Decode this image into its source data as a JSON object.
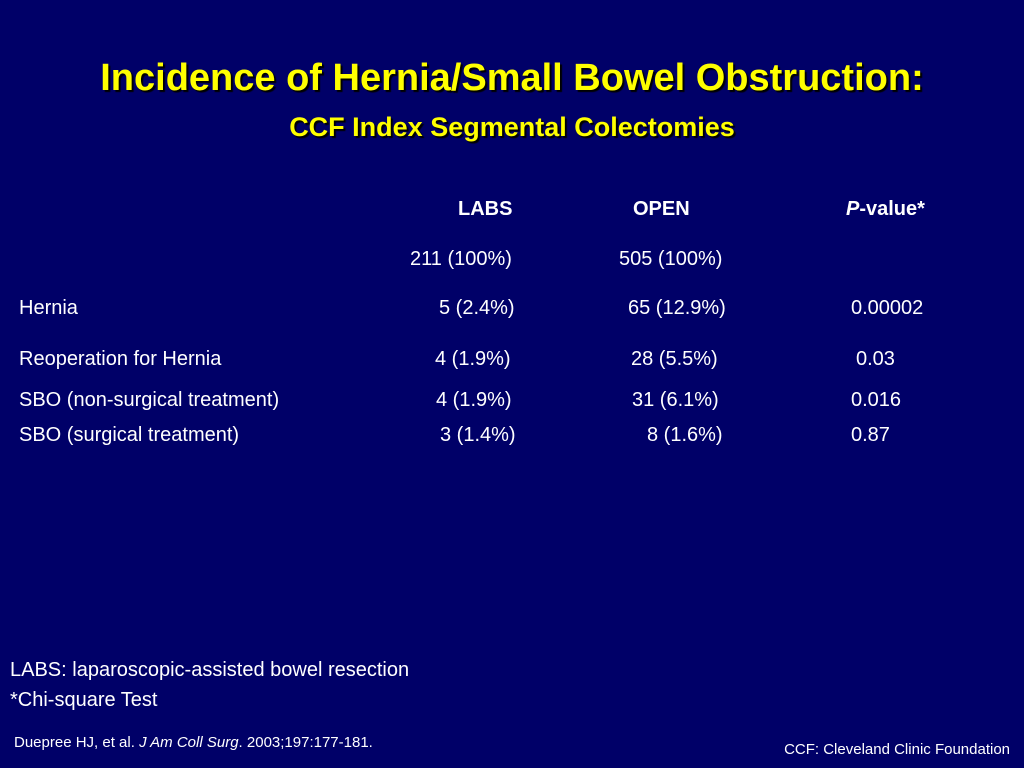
{
  "slide": {
    "title": "Incidence of Hernia/Small Bowel Obstruction:",
    "subtitle": "CCF Index Segmental Colectomies"
  },
  "table": {
    "headers": {
      "labs": "LABS",
      "open": "OPEN",
      "p_italic": "P",
      "p_rest": "-value*"
    },
    "totals": {
      "labs": "211 (100%)",
      "open": "505 (100%)"
    },
    "rows": [
      {
        "label": "Hernia",
        "labs": "5 (2.4%)",
        "open": "65 (12.9%)",
        "p": "0.00002"
      },
      {
        "label": "Reoperation for Hernia",
        "labs": "4 (1.9%)",
        "open": "28 (5.5%)",
        "p": "0.03"
      },
      {
        "label": "SBO (non-surgical treatment)",
        "labs": "4 (1.9%)",
        "open": "31 (6.1%)",
        "p": "0.016"
      },
      {
        "label": "SBO (surgical treatment)",
        "labs": "3 (1.4%)",
        "open": "8 (1.6%)",
        "p": "0.87"
      }
    ]
  },
  "footnotes": {
    "labs_definition": "LABS: laparoscopic-assisted bowel resection",
    "chi_square": "*Chi-square Test"
  },
  "citation": {
    "authors": "Duepree HJ, et al. ",
    "journal": "J Am Coll Surg",
    "details": ". 2003;197:177-181."
  },
  "ccf_note": "CCF: Cleveland Clinic Foundation",
  "colors": {
    "background": "#000068",
    "title": "#ffff00",
    "text": "#ffffff"
  }
}
